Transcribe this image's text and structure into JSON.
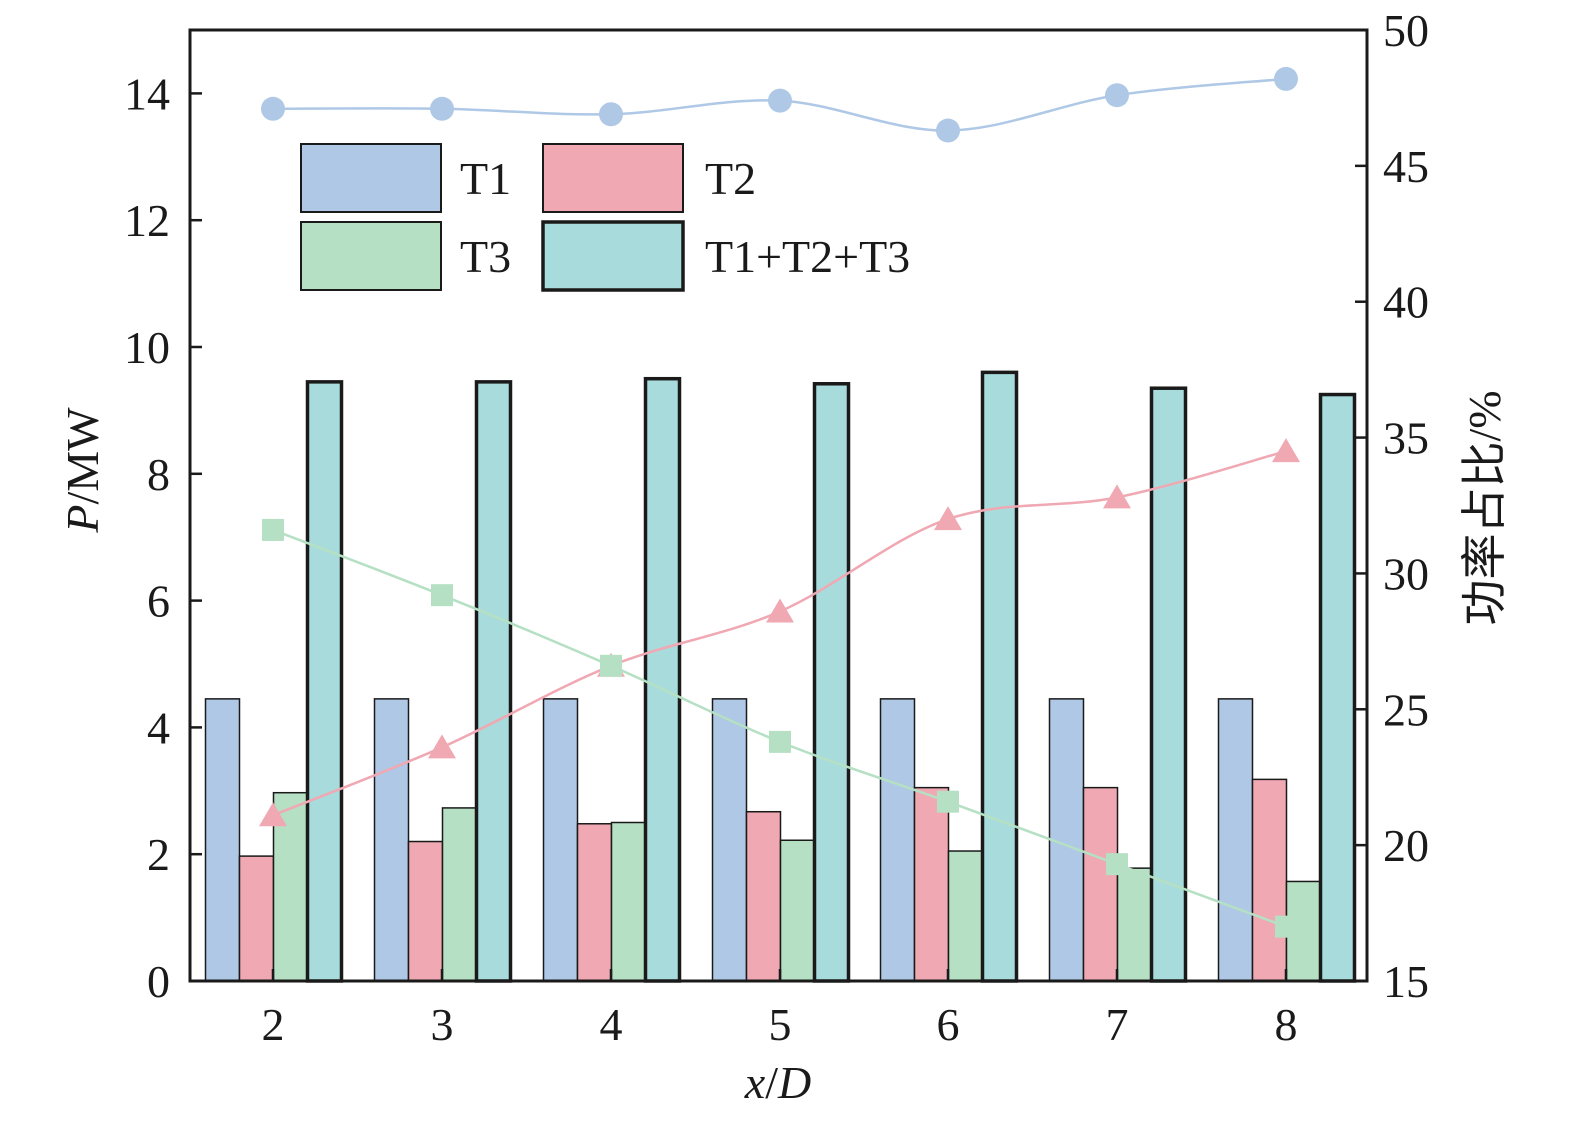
{
  "chart_data": {
    "type": "bar",
    "categories": [
      "2",
      "3",
      "4",
      "5",
      "6",
      "7",
      "8"
    ],
    "xlabel": {
      "italic": "x",
      "rest": "/",
      "italic2": "D"
    },
    "ylabel_left": {
      "italic": "P",
      "rest": "/MW"
    },
    "ylabel_right": "功率占比/%",
    "ylim_left": [
      0,
      15
    ],
    "yticks_left": [
      0,
      2,
      4,
      6,
      8,
      10,
      12,
      14
    ],
    "ylim_right": [
      15,
      50
    ],
    "yticks_right": [
      15,
      20,
      25,
      30,
      35,
      40,
      45,
      50
    ],
    "grid": false,
    "legend_placement": "top-left",
    "bar_series": [
      {
        "name": "T1",
        "color": "#aec8e6",
        "values": [
          4.45,
          4.45,
          4.45,
          4.45,
          4.45,
          4.45,
          4.45
        ]
      },
      {
        "name": "T2",
        "color": "#f0a8b3",
        "values": [
          1.97,
          2.2,
          2.48,
          2.67,
          3.05,
          3.05,
          3.18
        ]
      },
      {
        "name": "T3",
        "color": "#b5e0c3",
        "values": [
          2.97,
          2.73,
          2.5,
          2.22,
          2.05,
          1.78,
          1.57
        ]
      },
      {
        "name": "T1+T2+T3",
        "color": "#a8dcdc",
        "values": [
          9.45,
          9.45,
          9.5,
          9.42,
          9.6,
          9.35,
          9.25
        ]
      }
    ],
    "line_series": [
      {
        "axis": "right",
        "marker": "circle",
        "color": "#aec8e6",
        "values": [
          47.1,
          47.1,
          46.9,
          47.4,
          46.3,
          47.6,
          48.2
        ]
      },
      {
        "axis": "right",
        "marker": "triangle",
        "color": "#f0a8b3",
        "values": [
          21.1,
          23.6,
          26.6,
          28.6,
          32.0,
          32.8,
          34.5
        ]
      },
      {
        "axis": "right",
        "marker": "square",
        "color": "#b5e0c3",
        "values": [
          31.6,
          29.2,
          26.6,
          23.8,
          21.6,
          19.3,
          17.0
        ]
      }
    ]
  }
}
